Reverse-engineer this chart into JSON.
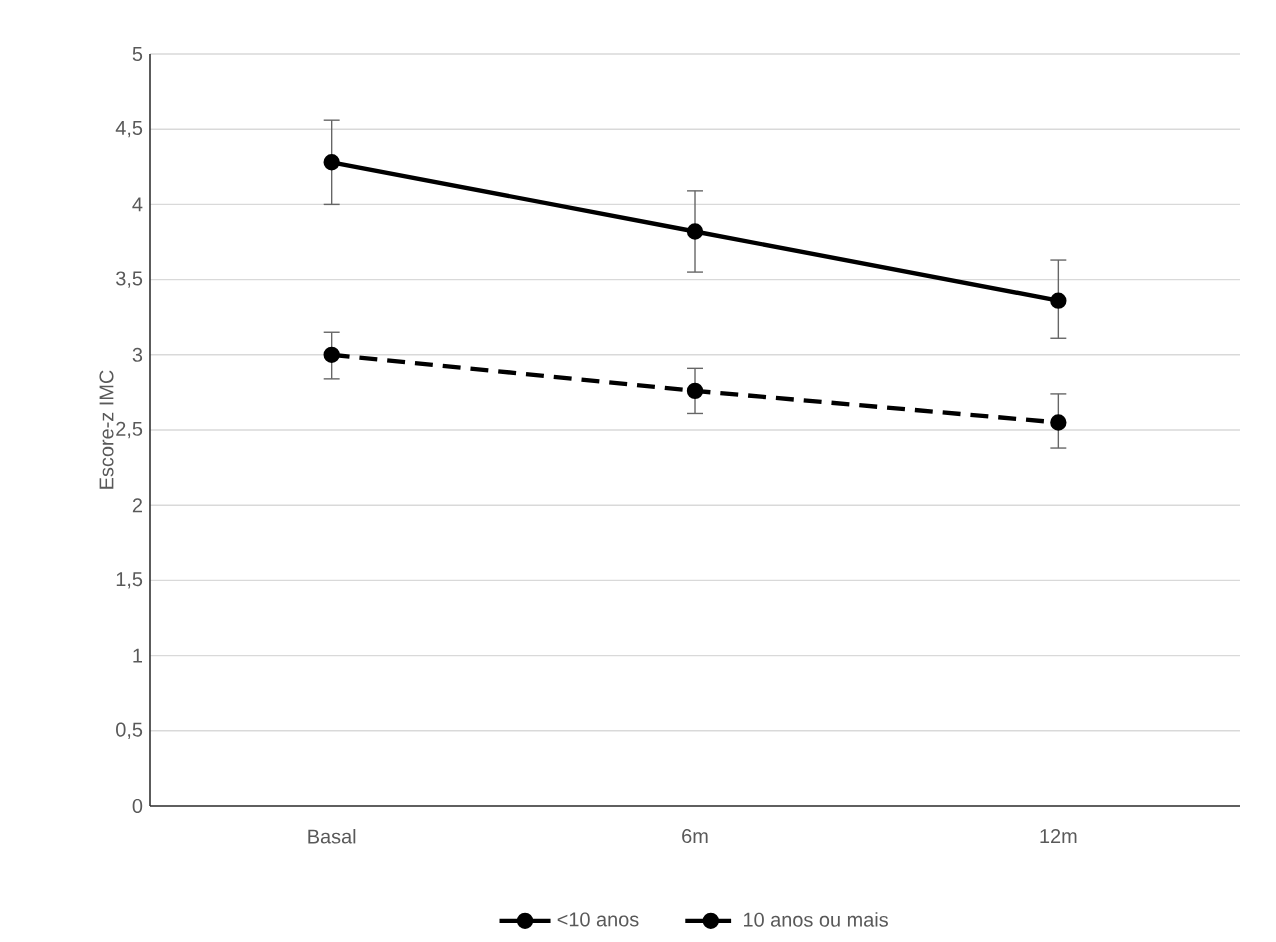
{
  "chart_data": {
    "type": "line",
    "ylabel": "Escore-z IMC",
    "categories": [
      "Basal",
      "6m",
      "12m"
    ],
    "series": [
      {
        "name": "<10 anos",
        "color": "#000000",
        "line_style": "solid",
        "values": [
          4.28,
          3.82,
          3.36
        ],
        "errors": [
          [
            4.0,
            4.56
          ],
          [
            3.55,
            4.09
          ],
          [
            3.11,
            3.63
          ]
        ]
      },
      {
        "name": "10 anos ou mais",
        "color": "#000000",
        "line_style": "dashed",
        "values": [
          3.0,
          2.76,
          2.55
        ],
        "errors": [
          [
            2.84,
            3.15
          ],
          [
            2.61,
            2.91
          ],
          [
            2.38,
            2.74
          ]
        ]
      }
    ],
    "ylim": [
      0,
      5
    ],
    "yticks": [
      {
        "value": 0,
        "label": "0"
      },
      {
        "value": 0.5,
        "label": "0,5"
      },
      {
        "value": 1,
        "label": "1"
      },
      {
        "value": 1.5,
        "label": "1,5"
      },
      {
        "value": 2,
        "label": "2"
      },
      {
        "value": 2.5,
        "label": "2,5"
      },
      {
        "value": 3,
        "label": "3"
      },
      {
        "value": 3.5,
        "label": "3,5"
      },
      {
        "value": 4,
        "label": "4"
      },
      {
        "value": 4.5,
        "label": "4,5"
      },
      {
        "value": 5,
        "label": "5"
      }
    ],
    "grid": "y",
    "legend": "bottom",
    "marker": "circle"
  }
}
